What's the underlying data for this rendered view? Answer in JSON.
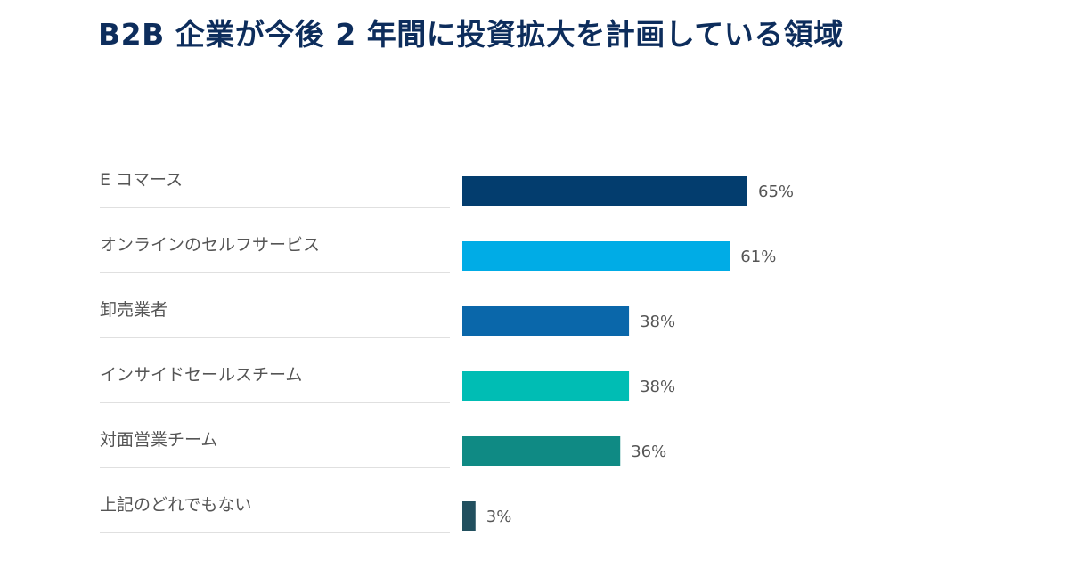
{
  "chart_data": {
    "type": "bar",
    "orientation": "horizontal",
    "title": "B2B 企業が今後 2 年間に投資拡大を計画している領域",
    "categories": [
      "E コマース",
      "オンラインのセルフサービス",
      "卸売業者",
      "インサイドセールスチーム",
      "対面営業チーム",
      "上記のどれでもない"
    ],
    "values": [
      65,
      61,
      38,
      38,
      36,
      3
    ],
    "value_labels": [
      "65%",
      "61%",
      "38%",
      "38%",
      "36%",
      "3%"
    ],
    "colors": [
      "#033d6e",
      "#00ace6",
      "#0a67aa",
      "#00bdb4",
      "#0f8a84",
      "#22505f"
    ],
    "unit": "%",
    "xlim": [
      0,
      100
    ],
    "grid": false,
    "legend": "none"
  }
}
